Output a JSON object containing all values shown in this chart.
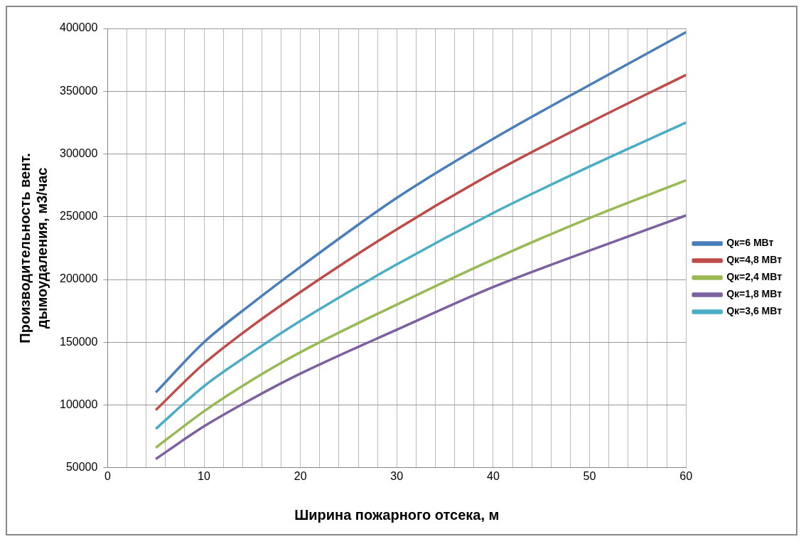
{
  "chart_data": {
    "type": "line",
    "xlabel": "Ширина пожарного отсека, м",
    "ylabel": "Производительность вент.\nдымоудаления, м3/час",
    "x": [
      5,
      10,
      15,
      20,
      30,
      40,
      50,
      60
    ],
    "series": [
      {
        "name": "Qк=6 МВт",
        "color": "#4a7ebb",
        "values": [
          110000,
          150000,
          181000,
          210000,
          265000,
          312000,
          355000,
          397000
        ]
      },
      {
        "name": "Qк=4,8 МВт",
        "color": "#be4b48",
        "values": [
          96000,
          133000,
          163000,
          190000,
          240000,
          285000,
          325000,
          363000
        ]
      },
      {
        "name": "Qк=2,4 МВт",
        "color": "#98b954",
        "values": [
          66000,
          95000,
          120000,
          142000,
          180000,
          216000,
          249000,
          279000
        ]
      },
      {
        "name": "Qк=1,8 МВт",
        "color": "#7d60a0",
        "values": [
          57000,
          83000,
          105000,
          125000,
          160000,
          194000,
          223000,
          251000
        ]
      },
      {
        "name": "Qк=3,6 МВт",
        "color": "#4bacc6",
        "values": [
          81000,
          115000,
          142000,
          167000,
          212000,
          253000,
          290000,
          325000
        ]
      }
    ],
    "xlim": [
      0,
      60
    ],
    "xticks": [
      0,
      {
        "value": 2,
        "label": null
      },
      {
        "value": 4,
        "label": null
      },
      {
        "value": 6,
        "label": null
      },
      {
        "value": 8,
        "label": null
      },
      10,
      {
        "value": 12,
        "label": null
      },
      {
        "value": 14,
        "label": null
      },
      {
        "value": 16,
        "label": null
      },
      {
        "value": 18,
        "label": null
      },
      20,
      {
        "value": 22,
        "label": null
      },
      {
        "value": 24,
        "label": null
      },
      {
        "value": 26,
        "label": null
      },
      {
        "value": 28,
        "label": null
      },
      30,
      {
        "value": 32,
        "label": null
      },
      {
        "value": 34,
        "label": null
      },
      {
        "value": 36,
        "label": null
      },
      {
        "value": 38,
        "label": null
      },
      40,
      {
        "value": 42,
        "label": null
      },
      {
        "value": 44,
        "label": null
      },
      {
        "value": 46,
        "label": null
      },
      {
        "value": 48,
        "label": null
      },
      50,
      {
        "value": 52,
        "label": null
      },
      {
        "value": 54,
        "label": null
      },
      {
        "value": 56,
        "label": null
      },
      {
        "value": 58,
        "label": null
      },
      60
    ],
    "ylim": [
      50000,
      400000
    ],
    "yticks": [
      50000,
      100000,
      150000,
      200000,
      250000,
      300000,
      350000,
      400000
    ],
    "grid": true,
    "legend": "right",
    "marker": "none",
    "line_style": "solid"
  }
}
